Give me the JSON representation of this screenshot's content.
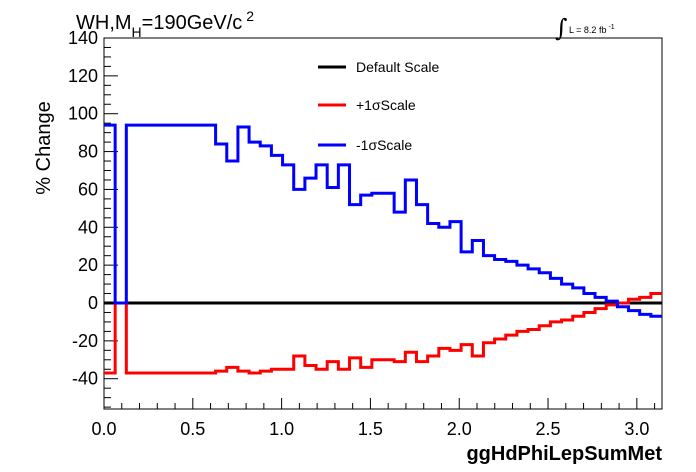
{
  "chart_data": {
    "type": "line",
    "title": "WH,M",
    "title_sub": "H",
    "title_rest": "=190GeV/c",
    "title_sup": "2",
    "luminosity": {
      "integral": "∫",
      "label": "L = 8.2 fb",
      "sup": "-1"
    },
    "xlabel": "ggHdPhiLepSumMet",
    "ylabel": "% Change",
    "xlim": [
      0.0,
      3.1416
    ],
    "ylim": [
      -56,
      140
    ],
    "xticks": [
      "0.0",
      "0.5",
      "1.0",
      "1.5",
      "2.0",
      "2.5",
      "3.0"
    ],
    "xtick_values": [
      0.0,
      0.5,
      1.0,
      1.5,
      2.0,
      2.5,
      3.0
    ],
    "yticks": [
      "-40",
      "-20",
      "0",
      "20",
      "40",
      "60",
      "80",
      "100",
      "120",
      "140"
    ],
    "ytick_values": [
      -40,
      -20,
      0,
      20,
      40,
      60,
      80,
      100,
      120,
      140
    ],
    "grid": false,
    "legend_position": "top-center",
    "bin_edges": [
      0.0,
      0.0628,
      0.1257,
      0.1885,
      0.2513,
      0.3142,
      0.377,
      0.4398,
      0.5027,
      0.5655,
      0.6283,
      0.6912,
      0.754,
      0.8168,
      0.8796,
      0.9425,
      1.0053,
      1.0681,
      1.131,
      1.1938,
      1.2566,
      1.3195,
      1.3823,
      1.4451,
      1.508,
      1.5708,
      1.6336,
      1.6965,
      1.7593,
      1.8221,
      1.885,
      1.9478,
      2.0106,
      2.0735,
      2.1363,
      2.1991,
      2.2619,
      2.3248,
      2.3876,
      2.4504,
      2.5133,
      2.5761,
      2.6389,
      2.7018,
      2.7646,
      2.8274,
      2.8903,
      2.9531,
      3.0159,
      3.0788,
      3.1416
    ],
    "series": [
      {
        "name": "Default Scale",
        "color": "#000000",
        "values": [
          0,
          0,
          0,
          0,
          0,
          0,
          0,
          0,
          0,
          0,
          0,
          0,
          0,
          0,
          0,
          0,
          0,
          0,
          0,
          0,
          0,
          0,
          0,
          0,
          0,
          0,
          0,
          0,
          0,
          0,
          0,
          0,
          0,
          0,
          0,
          0,
          0,
          0,
          0,
          0,
          0,
          0,
          0,
          0,
          0,
          0,
          0,
          0,
          0,
          0
        ]
      },
      {
        "name": "+1σScale",
        "color": "#ff0000",
        "values": [
          -37,
          0,
          -37,
          -37,
          -37,
          -37,
          -37,
          -37,
          -37,
          -37,
          -36,
          -34,
          -36,
          -37,
          -36,
          -35,
          -35,
          -28,
          -33,
          -35,
          -31,
          -35,
          -29,
          -34,
          -30,
          -30,
          -31,
          -26,
          -31,
          -28,
          -24,
          -25,
          -22,
          -28,
          -21,
          -19,
          -17,
          -15,
          -14,
          -12,
          -10,
          -9,
          -7,
          -5,
          -3,
          -1,
          0,
          2,
          3,
          5
        ]
      },
      {
        "name": "-1σScale",
        "color": "#0000ff",
        "values": [
          94,
          0,
          94,
          94,
          94,
          94,
          94,
          94,
          94,
          94,
          84,
          75,
          93,
          85,
          83,
          78,
          73,
          60,
          66,
          73,
          61,
          73,
          52,
          57,
          58,
          58,
          48,
          65,
          52,
          42,
          40,
          43,
          27,
          33,
          25,
          23,
          22,
          20,
          18,
          16,
          13,
          10,
          8,
          5,
          3,
          1,
          -2,
          -4,
          -6,
          -7
        ]
      }
    ]
  }
}
